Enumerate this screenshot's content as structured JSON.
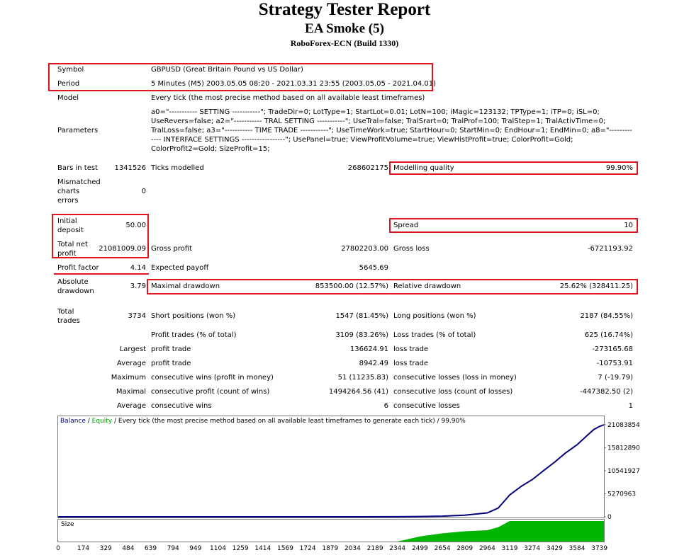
{
  "header": {
    "title": "Strategy Tester Report",
    "ea_name": "EA Smoke (5)",
    "broker": "RoboForex-ECN (Build 1330)"
  },
  "info": {
    "symbol_label": "Symbol",
    "symbol_value": "GBPUSD (Great Britain Pound vs US Dollar)",
    "period_label": "Period",
    "period_value": "5 Minutes (M5) 2003.05.05 08:20 - 2021.03.31 23:55 (2003.05.05 - 2021.04.01)",
    "model_label": "Model",
    "model_value": "Every tick (the most precise method based on all available least timeframes)",
    "parameters_label": "Parameters",
    "parameters_value": "a0=\"----------- SETTING -----------\"; TradeDir=0; LotType=1; StartLot=0.01; LotN=100; iMagic=123132; TPType=1; iTP=0; iSL=0; UseRevers=false; a2=\"----------- TRAL SETTING -----------\"; UseTral=false; TralSrart=0; TralProf=100; TralStep=1; TralActivTime=0; TralLoss=false; a3=\"----------- TIME TRADE -----------\"; UseTimeWork=true; StartHour=0; StartMin=0; EndHour=1; EndMin=0; a8=\"------------- INTERFACE SETTINGS -----------------\"; UsePanel=true; ViewProfitVolume=true; ViewHistProfit=true; ColorProfit=Gold; ColorProfit2=Gold; SizeProfit=15;"
  },
  "stats": {
    "bars_label": "Bars in test",
    "bars_value": "1341526",
    "ticks_label": "Ticks modelled",
    "ticks_value": "268602175",
    "quality_label": "Modelling quality",
    "quality_value": "99.90%",
    "mismatch_label_1": "Mismatched",
    "mismatch_label_2": "charts",
    "mismatch_label_3": "errors",
    "mismatch_value": "0",
    "initial_label_1": "Initial",
    "initial_label_2": "deposit",
    "initial_value": "50.00",
    "spread_label": "Spread",
    "spread_value": "10",
    "net_label_1": "Total net",
    "net_label_2": "profit",
    "net_value": "21081009.09",
    "gross_profit_label": "Gross profit",
    "gross_profit_value": "27802203.00",
    "gross_loss_label": "Gross loss",
    "gross_loss_value": "-6721193.92",
    "pf_label": "Profit factor",
    "pf_value": "4.14",
    "payoff_label": "Expected payoff",
    "payoff_value": "5645.69",
    "abs_dd_label_1": "Absolute",
    "abs_dd_label_2": "drawdown",
    "abs_dd_value": "3.79",
    "max_dd_label": "Maximal drawdown",
    "max_dd_value": "853500.00 (12.57%)",
    "rel_dd_label": "Relative drawdown",
    "rel_dd_value": "25.62% (328411.25)",
    "total_trades_label_1": "Total",
    "total_trades_label_2": "trades",
    "total_trades_value": "3734",
    "short_label": "Short positions (won %)",
    "short_value": "1547 (81.45%)",
    "long_label": "Long positions (won %)",
    "long_value": "2187 (84.55%)",
    "profit_trades_label": "Profit trades (% of total)",
    "profit_trades_value": "3109 (83.26%)",
    "loss_trades_label": "Loss trades (% of total)",
    "loss_trades_value": "625 (16.74%)",
    "largest_label": "Largest",
    "largest_profit_label": "profit trade",
    "largest_profit_value": "136624.91",
    "largest_loss_label": "loss trade",
    "largest_loss_value": "-273165.68",
    "average_label": "Average",
    "average_profit_label": "profit trade",
    "average_profit_value": "8942.49",
    "average_loss_label": "loss trade",
    "average_loss_value": "-10753.91",
    "maximum_label": "Maximum",
    "max_wins_label": "consecutive wins (profit in money)",
    "max_wins_value": "51 (11235.83)",
    "max_losses_label": "consecutive losses (loss in money)",
    "max_losses_value": "7 (-19.79)",
    "maximal_label": "Maximal",
    "max_profit_label": "consecutive profit (count of wins)",
    "max_profit_value": "1494264.56 (41)",
    "max_loss_label": "consecutive loss (count of losses)",
    "max_loss_value": "-447382.50 (2)",
    "average2_label": "Average",
    "avg_wins_label": "consecutive wins",
    "avg_wins_value": "6",
    "avg_losses_label": "consecutive losses",
    "avg_losses_value": "1"
  },
  "chart_legend": {
    "balance": "Balance",
    "sep1": " / ",
    "equity": "Equity",
    "rest": " / Every tick (the most precise method based on all available least timeframes to generate each tick) / 99.90%"
  },
  "colors": {
    "balance": "#000080",
    "equity": "#00a000",
    "size": "#00b400",
    "highlight": "#e0141e"
  },
  "chart_data": {
    "type": "line",
    "title": "",
    "x": [
      0,
      400,
      800,
      1200,
      1600,
      2000,
      2344,
      2500,
      2654,
      2809,
      2964,
      3040,
      3119,
      3200,
      3274,
      3350,
      3429,
      3500,
      3584,
      3650,
      3700,
      3739,
      3770
    ],
    "series": [
      {
        "name": "Balance",
        "values": [
          50,
          50,
          300,
          800,
          1500,
          2500,
          10000,
          60000,
          150000,
          350000,
          900000,
          2000000,
          5000000,
          7000000,
          8500000,
          10500000,
          12500000,
          14500000,
          16500000,
          18500000,
          20000000,
          20700000,
          21081009
        ]
      }
    ],
    "y_ticks": [
      "21083854",
      "15812890",
      "10541927",
      "5270963",
      "0"
    ],
    "x_ticks": [
      "0",
      "174",
      "329",
      "484",
      "639",
      "794",
      "949",
      "1104",
      "1259",
      "1414",
      "1569",
      "1724",
      "1879",
      "2034",
      "2189",
      "2344",
      "2499",
      "2654",
      "2809",
      "2964",
      "3119",
      "3274",
      "3429",
      "3584",
      "3739"
    ],
    "ylim": [
      0,
      21083854
    ],
    "xlim": [
      0,
      3770
    ],
    "size_panel": {
      "label": "Size",
      "x": [
        0,
        2344,
        2500,
        2654,
        2809,
        2964,
        3040,
        3119,
        3770
      ],
      "values": [
        0,
        0,
        0.25,
        0.4,
        0.5,
        0.55,
        0.7,
        1,
        1
      ]
    }
  }
}
